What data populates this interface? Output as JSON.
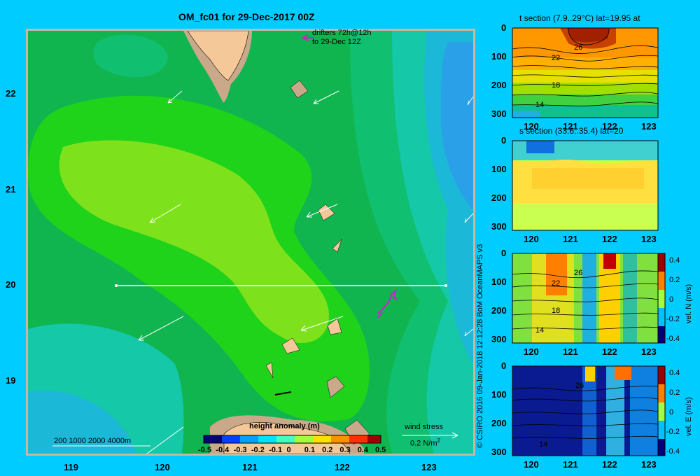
{
  "main_map": {
    "title": "OM_fc01 for 29-Dec-2017 00Z",
    "x_ticks": [
      "119",
      "120",
      "121",
      "122",
      "123"
    ],
    "y_ticks": [
      "22",
      "21",
      "20",
      "19"
    ],
    "drifters_label_1": "drifters 72h@12h",
    "drifters_label_2": "to 29-Dec 12Z",
    "bathymetry_label": "200  1000  2000  4000m",
    "colorbar_title": "height anomaly (m)",
    "colorbar_ticks": [
      "-0.5",
      "-0.4",
      "-0.3",
      "-0.2",
      "-0.1",
      "0",
      "0.1",
      "0.2",
      "0.3",
      "0.4",
      "0.5"
    ],
    "wind_stress_label": "wind stress",
    "wind_stress_scale": "0.2 N/m",
    "wind_stress_exp": "2",
    "section_latitude": 20
  },
  "copyright": "© CSIRO 2016   09-Jan-2018 12:12:28 BoM OceanMAPS v3",
  "panels": [
    {
      "title": "t section (7.9..29°C) lat=19.95 at",
      "x_ticks": [
        "120",
        "121",
        "122",
        "123"
      ],
      "y_ticks": [
        "0",
        "100",
        "200",
        "300"
      ],
      "contour_labels": [
        "26",
        "22",
        "18",
        "14"
      ]
    },
    {
      "title": "s section (33.6..35.4) lat=20",
      "x_ticks": [
        "120",
        "121",
        "122",
        "123"
      ],
      "y_ticks": [
        "0",
        "100",
        "200",
        "300"
      ]
    },
    {
      "title": "",
      "x_ticks": [
        "120",
        "121",
        "122",
        "123"
      ],
      "y_ticks": [
        "0",
        "100",
        "200",
        "300"
      ],
      "contour_labels": [
        "26",
        "22",
        "18",
        "14"
      ],
      "colorbar_ticks": [
        "0.4",
        "0.2",
        "0",
        "-0.2",
        "-0.4"
      ],
      "colorbar_label": "vel. N (m/s)"
    },
    {
      "title": "",
      "x_ticks": [
        "120",
        "121",
        "122",
        "123"
      ],
      "y_ticks": [
        "0",
        "100",
        "200",
        "300"
      ],
      "contour_labels": [
        "26",
        "14"
      ],
      "colorbar_ticks": [
        "0.4",
        "0.2",
        "0",
        "-0.2",
        "-0.4"
      ],
      "colorbar_label": "vel. E (m/s)"
    }
  ],
  "colors": {
    "background": "#00ccff",
    "land": "#f5c89a",
    "shelf": "#c9a98a",
    "frame": "#c8b89c"
  }
}
